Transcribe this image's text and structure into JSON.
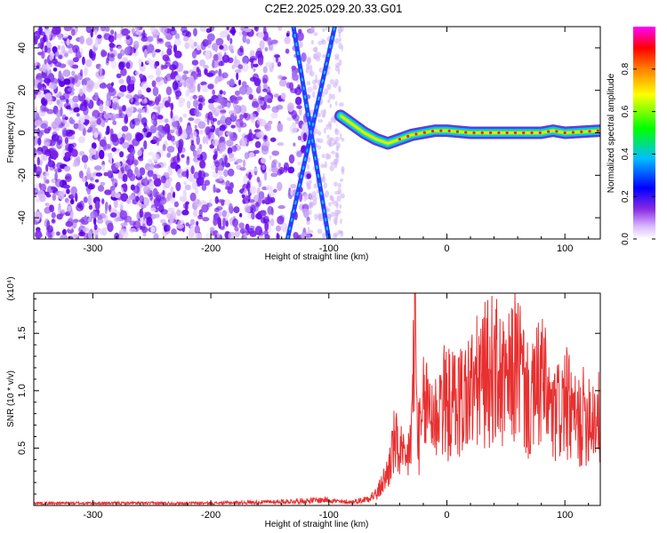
{
  "title": "C2E2.2025.029.20.33.G01",
  "chart_data": [
    {
      "type": "heatmap",
      "xlabel": "Height of straight line (km)",
      "ylabel": "Frequency (Hz)",
      "xlim": [
        -350,
        130
      ],
      "ylim": [
        -50,
        50
      ],
      "x_ticks": [
        -300,
        -200,
        -100,
        0,
        100
      ],
      "x_tick_labels": [
        "-300",
        "-200",
        "-100",
        "0",
        "100"
      ],
      "y_ticks": [
        -40,
        -20,
        0,
        20,
        40
      ],
      "y_tick_labels": [
        "-40",
        "-20",
        "0",
        "20",
        "40"
      ],
      "colorbar": {
        "label": "Normalized spectral amplitude",
        "range": [
          0,
          1
        ],
        "ticks": [
          0,
          0.2,
          0.4,
          0.6,
          0.8
        ],
        "tick_labels": [
          "0.0",
          "0.2",
          "0.4",
          "0.6",
          "0.8"
        ],
        "colormap": [
          "#ffffff",
          "#d9b8ff",
          "#8a2be2",
          "#0000ff",
          "#00bfff",
          "#00ff00",
          "#ffff00",
          "#ff8000",
          "#ff0000",
          "#ff00ff"
        ]
      },
      "features": {
        "ridge": {
          "x": [
            -90,
            -80,
            -70,
            -60,
            -50,
            -40,
            -30,
            -20,
            -10,
            0,
            20,
            40,
            60,
            80,
            90,
            100,
            130
          ],
          "y": [
            8,
            4,
            0,
            -3,
            -5,
            -3,
            -1,
            0,
            1,
            1,
            0,
            0,
            0,
            0,
            1,
            0,
            1
          ]
        },
        "diagonal_lines": [
          {
            "x": [
              -135,
              -95
            ],
            "y": [
              -50,
              50
            ]
          },
          {
            "x": [
              -100,
              -130
            ],
            "y": [
              -50,
              50
            ]
          }
        ]
      }
    },
    {
      "type": "line",
      "xlabel": "Height of straight line (km)",
      "ylabel": "SNR (10 * v/v)",
      "y_scale_note": "(x10⁴)",
      "xlim": [
        -350,
        130
      ],
      "ylim": [
        0,
        1.85
      ],
      "x_ticks": [
        -300,
        -200,
        -100,
        0,
        100
      ],
      "x_tick_labels": [
        "-300",
        "-200",
        "-100",
        "0",
        "100"
      ],
      "y_ticks": [
        0.5,
        1.0,
        1.5
      ],
      "y_tick_labels": [
        "0.5",
        "1.0",
        "1.5"
      ],
      "color": "#e83030",
      "series": [
        {
          "x": [
            -350,
            -300,
            -250,
            -200,
            -150,
            -120,
            -100,
            -90,
            -80,
            -70,
            -60,
            -50,
            -45,
            -40,
            -35,
            -30,
            -27,
            -25,
            -22,
            -20,
            -15,
            -10,
            -5,
            0,
            10,
            20,
            30,
            40,
            50,
            60,
            70,
            80,
            90,
            100,
            110,
            120,
            130
          ],
          "values": [
            0.02,
            0.02,
            0.02,
            0.02,
            0.03,
            0.04,
            0.05,
            0.03,
            0.03,
            0.05,
            0.1,
            0.35,
            0.65,
            0.6,
            0.4,
            0.75,
            1.85,
            0.8,
            0.7,
            1.0,
            1.1,
            0.9,
            1.15,
            1.05,
            1.1,
            1.2,
            1.35,
            1.45,
            1.2,
            1.55,
            1.0,
            1.35,
            0.9,
            1.1,
            0.85,
            1.0,
            0.9
          ]
        }
      ]
    }
  ]
}
